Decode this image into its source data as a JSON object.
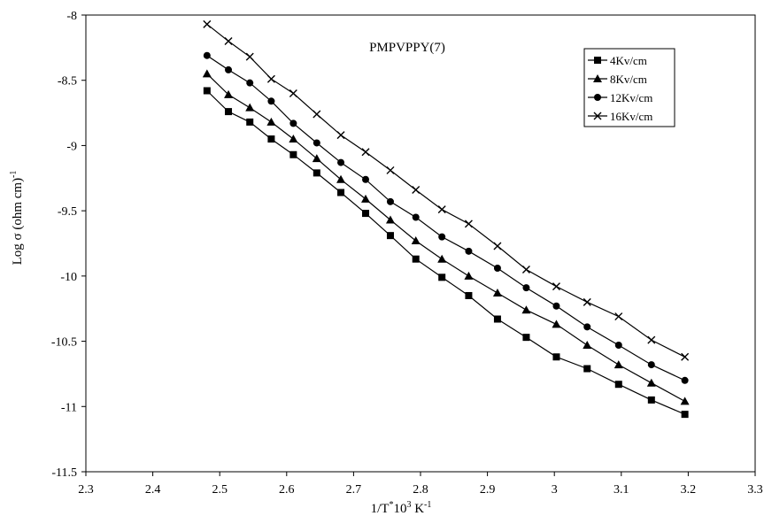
{
  "chart_data": {
    "type": "line",
    "title": "PMPVPPY(7)",
    "xlabel": "1/T",
    "xlabel_sup": "*",
    "xlabel_mid": "10",
    "xlabel_sup2": "3",
    "xlabel_unit": " K",
    "xlabel_sup3": "-1",
    "ylabel": "Log σ (ohm cm)",
    "ylabel_sup": "-1",
    "xlim": [
      2.3,
      3.3
    ],
    "ylim": [
      -11.5,
      -8
    ],
    "xticks": [
      "2.3",
      "2.4",
      "2.5",
      "2.6",
      "2.7",
      "2.8",
      "2.9",
      "3",
      "3.1",
      "3.2",
      "3.3"
    ],
    "yticks": [
      "-8",
      "-8.5",
      "-9",
      "-9.5",
      "-10",
      "-10.5",
      "-11",
      "-11.5"
    ],
    "grid": false,
    "legend_position": "top-right",
    "x": [
      2.481,
      2.513,
      2.545,
      2.577,
      2.61,
      2.645,
      2.681,
      2.718,
      2.755,
      2.793,
      2.832,
      2.872,
      2.915,
      2.958,
      3.003,
      3.049,
      3.096,
      3.145,
      3.195
    ],
    "series": [
      {
        "name": "4Kv/cm",
        "marker": "square",
        "values": [
          -8.58,
          -8.74,
          -8.82,
          -8.95,
          -9.07,
          -9.21,
          -9.36,
          -9.52,
          -9.69,
          -9.87,
          -10.01,
          -10.15,
          -10.33,
          -10.47,
          -10.62,
          -10.71,
          -10.83,
          -10.95,
          -11.06
        ]
      },
      {
        "name": "8Kv/cm",
        "marker": "triangle",
        "values": [
          -8.45,
          -8.61,
          -8.71,
          -8.82,
          -8.95,
          -9.1,
          -9.26,
          -9.41,
          -9.57,
          -9.73,
          -9.87,
          -10.0,
          -10.13,
          -10.26,
          -10.37,
          -10.53,
          -10.68,
          -10.82,
          -10.96
        ]
      },
      {
        "name": "12Kv/cm",
        "marker": "circle",
        "values": [
          -8.31,
          -8.42,
          -8.52,
          -8.66,
          -8.83,
          -8.98,
          -9.13,
          -9.26,
          -9.43,
          -9.55,
          -9.7,
          -9.81,
          -9.94,
          -10.09,
          -10.23,
          -10.39,
          -10.53,
          -10.68,
          -10.8
        ]
      },
      {
        "name": "16Kv/cm",
        "marker": "cross",
        "values": [
          -8.07,
          -8.2,
          -8.32,
          -8.49,
          -8.6,
          -8.76,
          -8.92,
          -9.05,
          -9.19,
          -9.34,
          -9.49,
          -9.6,
          -9.77,
          -9.95,
          -10.08,
          -10.2,
          -10.31,
          -10.49,
          -10.62
        ]
      }
    ]
  }
}
